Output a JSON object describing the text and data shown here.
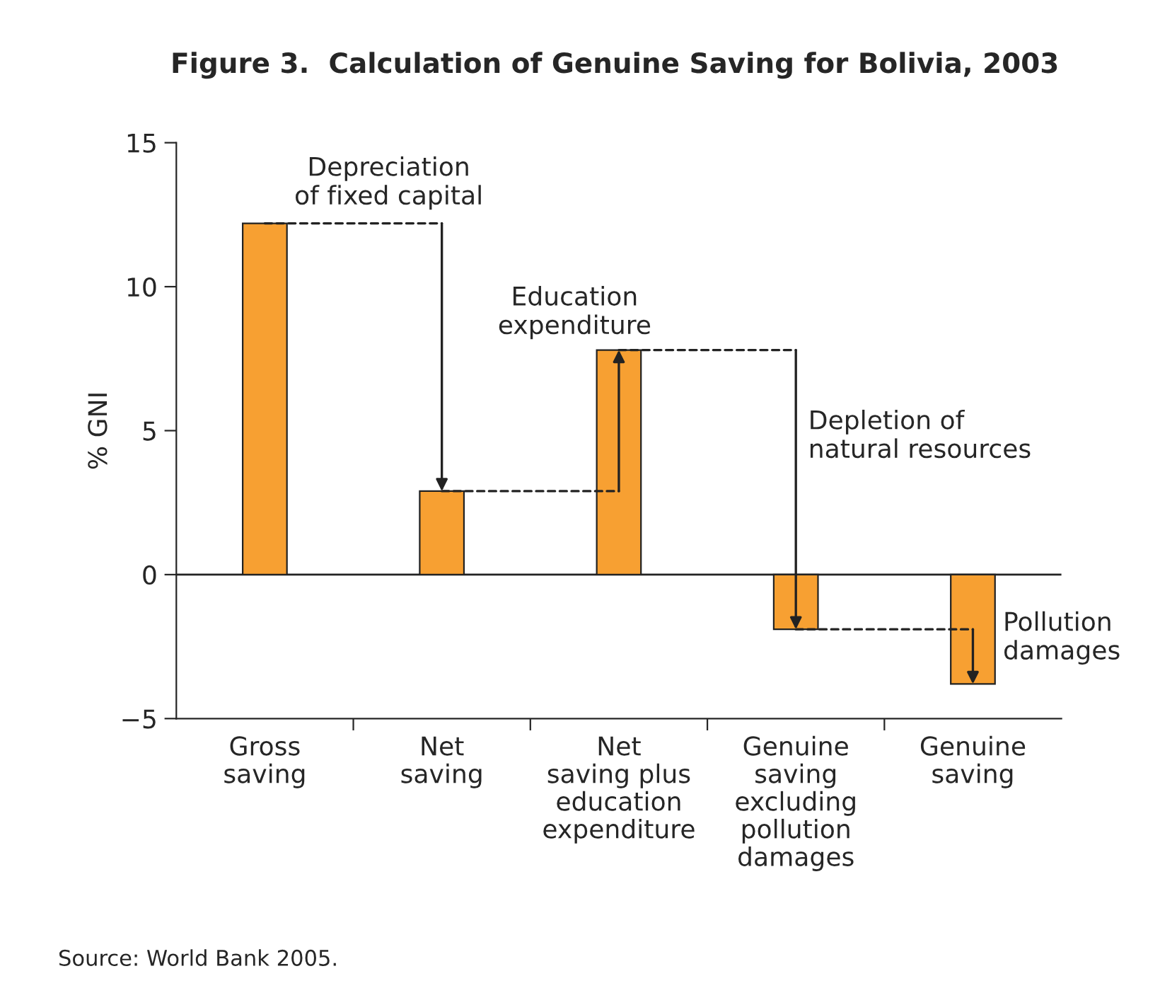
{
  "chart_data": {
    "type": "bar",
    "title": "Figure 3.  Calculation of Genuine Saving for Bolivia, 2003",
    "ylabel": "% GNI",
    "categories": [
      "Gross\nsaving",
      "Net\nsaving",
      "Net\nsaving plus\neducation\nexpenditure",
      "Genuine\nsaving\nexcluding\npollution\ndamages",
      "Genuine\nsaving"
    ],
    "values": [
      12.2,
      2.9,
      7.8,
      -1.9,
      -3.8
    ],
    "color": "#f7a032",
    "ylim": [
      -5,
      15
    ],
    "yticks": [
      {
        "value": -5,
        "label": "−5"
      },
      0,
      5,
      10,
      15
    ],
    "ref_lines": [
      {
        "axis": "y",
        "value": 0
      }
    ],
    "annotations": [
      {
        "text": "Depreciation\nof fixed capital",
        "x": "Net\nsaving",
        "y": 2.9
      },
      "Education\nexpenditure",
      "Depletion of\nnatural resources",
      {
        "text": "Pollution\ndamages",
        "x": "Genuine\nsaving",
        "y": -3.8
      },
      "Source: World Bank 2005."
    ],
    "grid": false,
    "legend": false
  }
}
